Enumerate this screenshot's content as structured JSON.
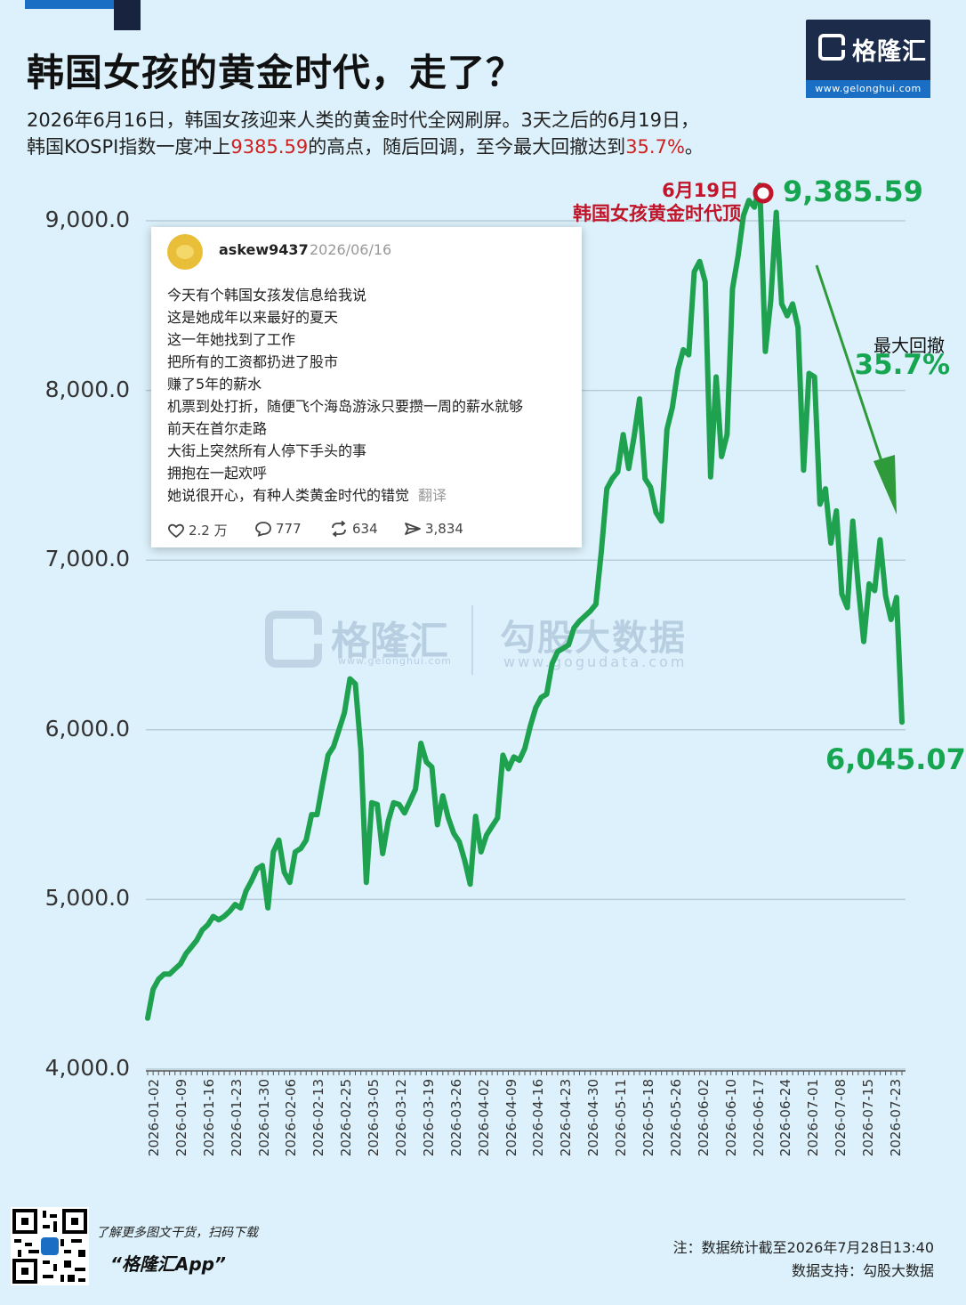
{
  "header": {
    "title": "韩国女孩的黄金时代，走了？",
    "subtitle_line1": "2026年6月16日，韩国女孩迎来人类的黄金时代全网刷屏。3天之后的6月19日，",
    "subtitle_line2_pre": "韩国KOSPI指数一度冲上",
    "subtitle_line2_peak": "9385.59",
    "subtitle_line2_mid": "的高点，随后回调，至今最大回撤达到",
    "subtitle_line2_pct": "35.7%",
    "subtitle_line2_post": "。"
  },
  "logo": {
    "name": "格隆汇",
    "url": "www.gelonghui.com"
  },
  "watermark": {
    "name1": "格隆汇",
    "url1": "www.gelonghui.com",
    "name2": "勾股大数据",
    "url2": "www.gogudata.com"
  },
  "colors": {
    "line": "#1ea24f",
    "peak_text": "#c0162b",
    "value_text": "#16a551",
    "highlight_red": "#d02020"
  },
  "annotations": {
    "peak_date": "6月19日",
    "peak_note": "韩国女孩黄金时代顶",
    "peak_value": "9,385.59",
    "last_value": "6,045.07",
    "drawdown_label": "最大回撤",
    "drawdown_value": "35.7%"
  },
  "tweet": {
    "username": "askew9437",
    "date": "2026/06/16",
    "lines": [
      "今天有个韩国女孩发信息给我说",
      "这是她成年以来最好的夏天",
      "这一年她找到了工作",
      "把所有的工资都扔进了股市",
      "赚了5年的薪水",
      "机票到处打折，随便飞个海岛游泳只要攒一周的薪水就够",
      "前天在首尔走路",
      "大街上突然所有人停下手头的事",
      "拥抱在一起欢呼",
      "她说很开心，有种人类黄金时代的错觉"
    ],
    "translate_label": "翻译",
    "likes": "2.2 万",
    "comments": "777",
    "reposts": "634",
    "views": "3,834"
  },
  "chart_data": {
    "type": "line",
    "ylim": [
      4000,
      9400
    ],
    "yticks": [
      "4,000.0",
      "5,000.0",
      "6,000.0",
      "7,000.0",
      "8,000.0",
      "9,000.0"
    ],
    "x_ticks": [
      "2026-01-02",
      "2026-01-09",
      "2026-01-16",
      "2026-01-23",
      "2026-01-30",
      "2026-02-06",
      "2026-02-13",
      "2026-02-25",
      "2026-03-05",
      "2026-03-12",
      "2026-03-19",
      "2026-03-26",
      "2026-04-02",
      "2026-04-09",
      "2026-04-16",
      "2026-04-23",
      "2026-04-30",
      "2026-05-11",
      "2026-05-18",
      "2026-05-26",
      "2026-06-02",
      "2026-06-10",
      "2026-06-17",
      "2026-06-24",
      "2026-07-01",
      "2026-07-08",
      "2026-07-15",
      "2026-07-23"
    ],
    "series": [
      {
        "values": [
          4300,
          4470,
          4530,
          4560,
          4560,
          4590,
          4620,
          4680,
          4720,
          4760,
          4820,
          4850,
          4900,
          4880,
          4900,
          4930,
          4970,
          4950,
          5050,
          5110,
          5180,
          5200,
          4950,
          5280,
          5350,
          5160,
          5100,
          5280,
          5300,
          5350,
          5500,
          5500,
          5680,
          5850,
          5900,
          6000,
          6100,
          6300,
          6270,
          5880,
          5100,
          5570,
          5560,
          5270,
          5460,
          5570,
          5560,
          5510,
          5580,
          5650,
          5920,
          5810,
          5780,
          5440,
          5610,
          5480,
          5390,
          5340,
          5230,
          5090,
          5490,
          5280,
          5380,
          5430,
          5480,
          5850,
          5770,
          5840,
          5820,
          5890,
          6020,
          6130,
          6190,
          6210,
          6390,
          6460,
          6480,
          6500,
          6600,
          6640,
          6670,
          6700,
          6740,
          7050,
          7420,
          7480,
          7520,
          7740,
          7540,
          7730,
          7950,
          7480,
          7430,
          7280,
          7230,
          7770,
          7900,
          8120,
          8240,
          8210,
          8700,
          8760,
          8640,
          7490,
          8080,
          7610,
          7740,
          8600,
          8790,
          9030,
          9120,
          9080,
          9210,
          8230,
          8530,
          9050,
          8510,
          8440,
          8510,
          8370,
          7530,
          8100,
          8080,
          7330,
          7420,
          7100,
          7290,
          6800,
          6720,
          7230,
          6850,
          6520,
          6860,
          6820,
          7120,
          6790,
          6650,
          6780,
          6045.07
        ]
      }
    ]
  },
  "footer": {
    "qr_text": "了解更多图文干货，扫码下载",
    "app_name": "“格隆汇App”",
    "note": "注：数据统计截至2026年7月28日13:40",
    "support": "数据支持：勾股大数据"
  }
}
